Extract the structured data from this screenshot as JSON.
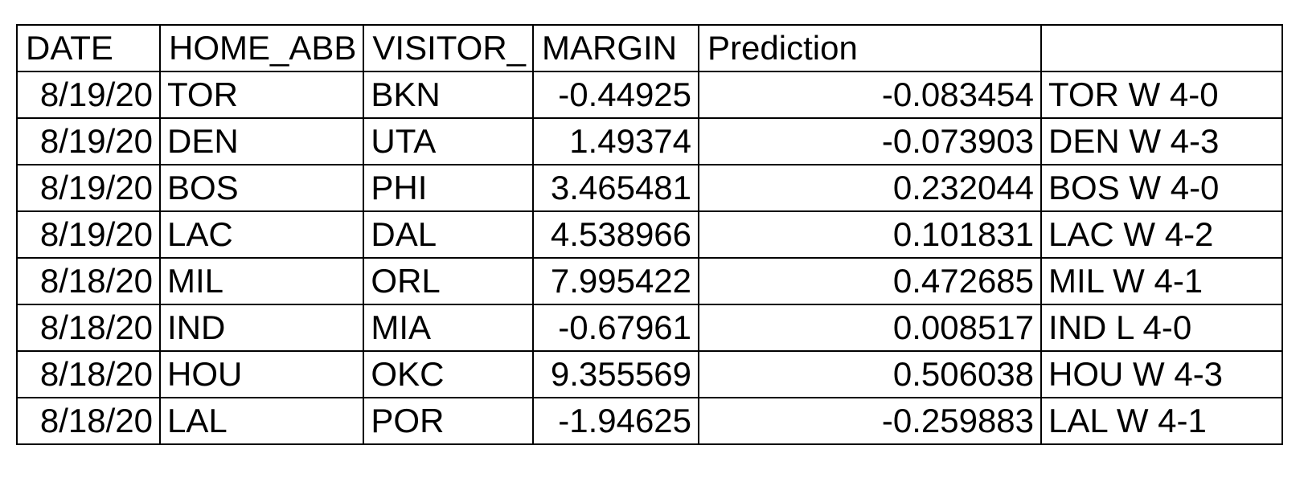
{
  "table": {
    "headers": [
      "DATE",
      "HOME_ABB",
      "VISITOR_",
      "MARGIN",
      "Prediction",
      ""
    ],
    "rows": [
      [
        "8/19/20",
        "TOR",
        "BKN",
        "-0.44925",
        "-0.083454",
        "TOR W 4-0"
      ],
      [
        "8/19/20",
        "DEN",
        "UTA",
        "1.49374",
        "-0.073903",
        "DEN W 4-3"
      ],
      [
        "8/19/20",
        "BOS",
        "PHI",
        "3.465481",
        "0.232044",
        "BOS W 4-0"
      ],
      [
        "8/19/20",
        "LAC",
        "DAL",
        "4.538966",
        "0.101831",
        "LAC W 4-2"
      ],
      [
        "8/18/20",
        "MIL",
        "ORL",
        "7.995422",
        "0.472685",
        "MIL W 4-1"
      ],
      [
        "8/18/20",
        "IND",
        "MIA",
        "-0.67961",
        "0.008517",
        "IND L 4-0"
      ],
      [
        "8/18/20",
        "HOU",
        "OKC",
        "9.355569",
        "0.506038",
        "HOU W 4-3"
      ],
      [
        "8/18/20",
        "LAL",
        "POR",
        "-1.94625",
        "-0.259883",
        "LAL W 4-1"
      ]
    ]
  }
}
